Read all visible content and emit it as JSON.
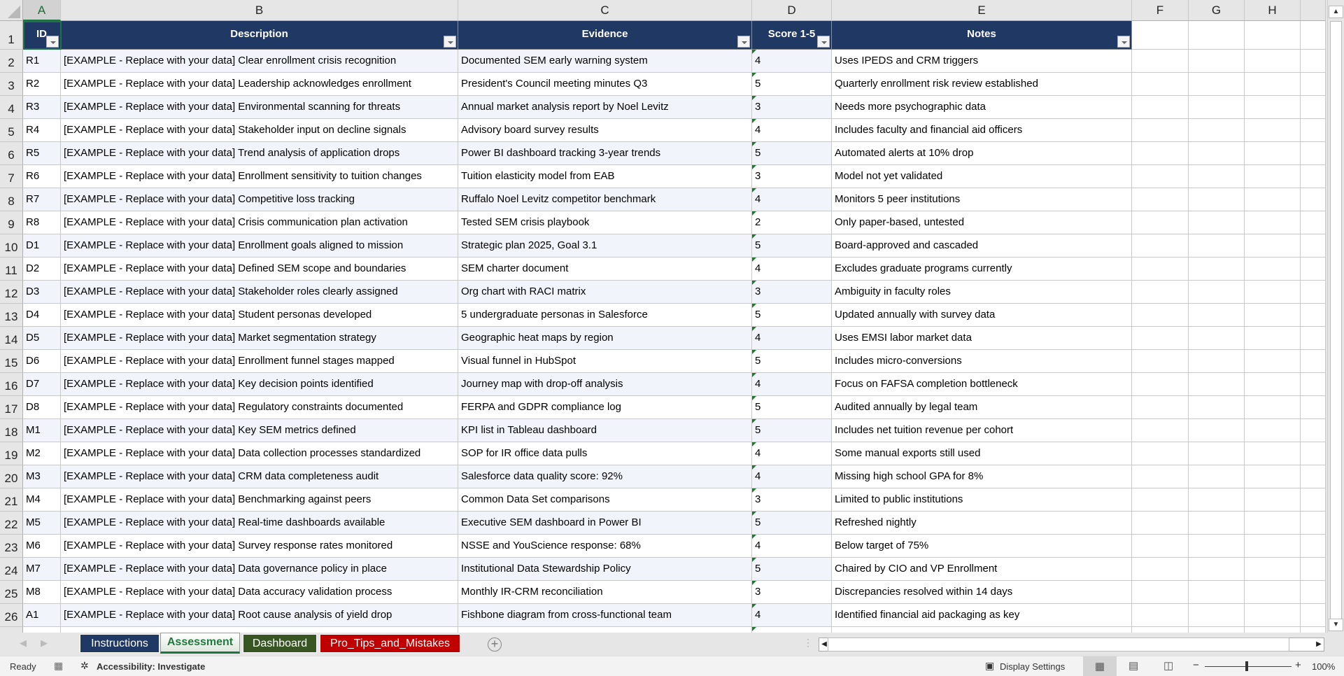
{
  "columns": [
    "A",
    "B",
    "C",
    "D",
    "E",
    "F",
    "G",
    "H"
  ],
  "headers": [
    "ID",
    "Description",
    "Evidence",
    "Score 1-5",
    "Notes"
  ],
  "rows": [
    [
      "R1",
      "[EXAMPLE - Replace with your data] Clear enrollment crisis recognition",
      "Documented SEM early warning system",
      "4",
      "Uses IPEDS and CRM triggers"
    ],
    [
      "R2",
      "[EXAMPLE - Replace with your data] Leadership acknowledges enrollment",
      "President's Council meeting minutes Q3",
      "5",
      "Quarterly enrollment risk review established"
    ],
    [
      "R3",
      "[EXAMPLE - Replace with your data] Environmental scanning for threats",
      "Annual market analysis report by Noel Levitz",
      "3",
      "Needs more psychographic data"
    ],
    [
      "R4",
      "[EXAMPLE - Replace with your data] Stakeholder input on decline signals",
      "Advisory board survey results",
      "4",
      "Includes faculty and financial aid officers"
    ],
    [
      "R5",
      "[EXAMPLE - Replace with your data] Trend analysis of application drops",
      "Power BI dashboard tracking 3-year trends",
      "5",
      "Automated alerts at 10% drop"
    ],
    [
      "R6",
      "[EXAMPLE - Replace with your data] Enrollment sensitivity to tuition changes",
      "Tuition elasticity model from EAB",
      "3",
      "Model not yet validated"
    ],
    [
      "R7",
      "[EXAMPLE - Replace with your data] Competitive loss tracking",
      "Ruffalo Noel Levitz competitor benchmark",
      "4",
      "Monitors 5 peer institutions"
    ],
    [
      "R8",
      "[EXAMPLE - Replace with your data] Crisis communication plan activation",
      "Tested SEM crisis playbook",
      "2",
      "Only paper-based, untested"
    ],
    [
      "D1",
      "[EXAMPLE - Replace with your data] Enrollment goals aligned to mission",
      "Strategic plan 2025, Goal 3.1",
      "5",
      "Board-approved and cascaded"
    ],
    [
      "D2",
      "[EXAMPLE - Replace with your data] Defined SEM scope and boundaries",
      "SEM charter document",
      "4",
      "Excludes graduate programs currently"
    ],
    [
      "D3",
      "[EXAMPLE - Replace with your data] Stakeholder roles clearly assigned",
      "Org chart with RACI matrix",
      "3",
      "Ambiguity in faculty roles"
    ],
    [
      "D4",
      "[EXAMPLE - Replace with your data] Student personas developed",
      "5 undergraduate personas in Salesforce",
      "5",
      "Updated annually with survey data"
    ],
    [
      "D5",
      "[EXAMPLE - Replace with your data] Market segmentation strategy",
      "Geographic heat maps by region",
      "4",
      "Uses EMSI labor market data"
    ],
    [
      "D6",
      "[EXAMPLE - Replace with your data] Enrollment funnel stages mapped",
      "Visual funnel in HubSpot",
      "5",
      "Includes micro-conversions"
    ],
    [
      "D7",
      "[EXAMPLE - Replace with your data] Key decision points identified",
      "Journey map with drop-off analysis",
      "4",
      "Focus on FAFSA completion bottleneck"
    ],
    [
      "D8",
      "[EXAMPLE - Replace with your data] Regulatory constraints documented",
      "FERPA and GDPR compliance log",
      "5",
      "Audited annually by legal team"
    ],
    [
      "M1",
      "[EXAMPLE - Replace with your data] Key SEM metrics defined",
      "KPI list in Tableau dashboard",
      "5",
      "Includes net tuition revenue per cohort"
    ],
    [
      "M2",
      "[EXAMPLE - Replace with your data] Data collection processes standardized",
      "SOP for IR office data pulls",
      "4",
      "Some manual exports still used"
    ],
    [
      "M3",
      "[EXAMPLE - Replace with your data] CRM data completeness audit",
      "Salesforce data quality score: 92%",
      "4",
      "Missing high school GPA for 8%"
    ],
    [
      "M4",
      "[EXAMPLE - Replace with your data] Benchmarking against peers",
      "Common Data Set comparisons",
      "3",
      "Limited to public institutions"
    ],
    [
      "M5",
      "[EXAMPLE - Replace with your data] Real-time dashboards available",
      "Executive SEM dashboard in Power BI",
      "5",
      "Refreshed nightly"
    ],
    [
      "M6",
      "[EXAMPLE - Replace with your data] Survey response rates monitored",
      "NSSE and YouScience response: 68%",
      "4",
      "Below target of 75%"
    ],
    [
      "M7",
      "[EXAMPLE - Replace with your data] Data governance policy in place",
      "Institutional Data Stewardship Policy",
      "5",
      "Chaired by CIO and VP Enrollment"
    ],
    [
      "M8",
      "[EXAMPLE - Replace with your data] Data accuracy validation process",
      "Monthly IR-CRM reconciliation",
      "3",
      "Discrepancies resolved within 14 days"
    ],
    [
      "A1",
      "[EXAMPLE - Replace with your data] Root cause analysis of yield drop",
      "Fishbone diagram from cross-functional team",
      "4",
      "Identified financial aid packaging as key"
    ]
  ],
  "tabs": [
    {
      "label": "Instructions",
      "color": "#203864",
      "active": false
    },
    {
      "label": "Assessment",
      "color": "#ffffff",
      "active": true
    },
    {
      "label": "Dashboard",
      "color": "#375623",
      "active": false
    },
    {
      "label": "Pro_Tips_and_Mistakes",
      "color": "#c00000",
      "active": false
    }
  ],
  "status": {
    "ready": "Ready",
    "accessibility": "Accessibility: Investigate",
    "display_settings": "Display Settings",
    "zoom": "100%"
  },
  "colors": {
    "header_fill": "#203864",
    "band_fill": "#f1f5fb",
    "accent": "#217346"
  }
}
